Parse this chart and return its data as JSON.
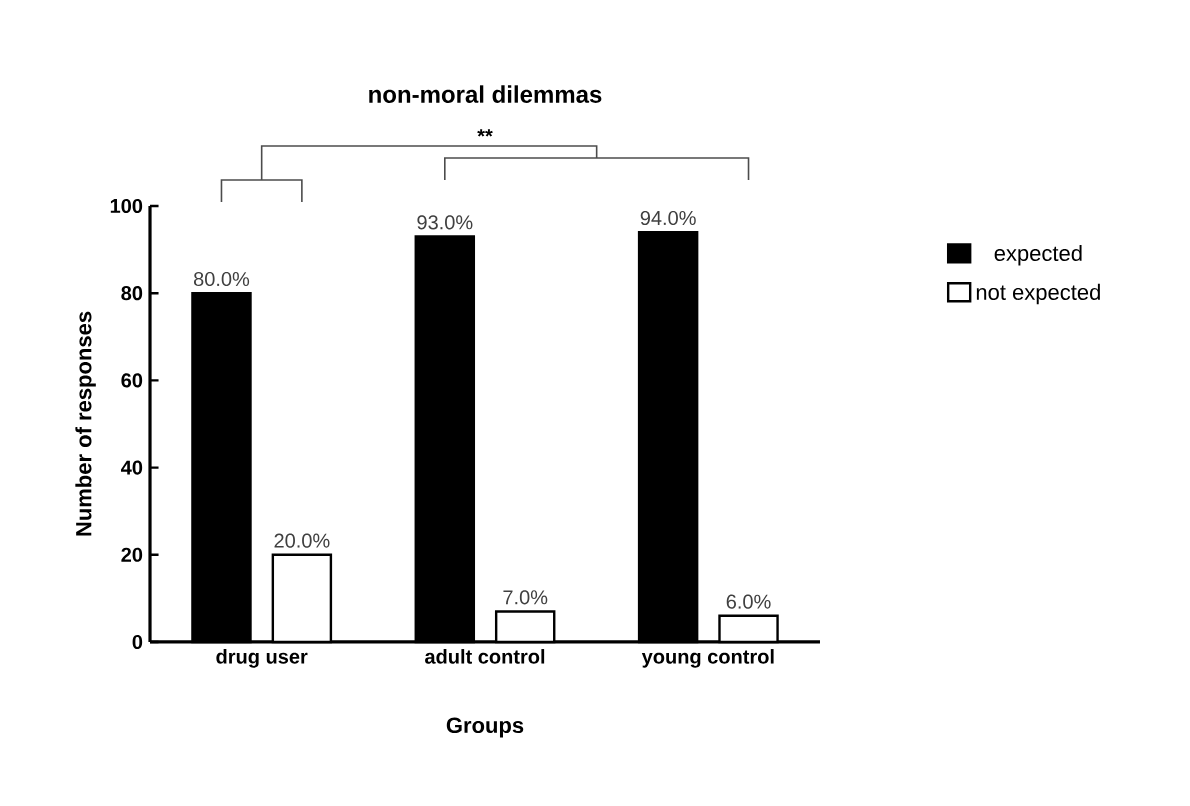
{
  "chart_data": {
    "type": "bar",
    "title": "non-moral dilemmas",
    "xlabel": "Groups",
    "ylabel": "Number of responses",
    "categories": [
      "drug user",
      "adult control",
      "young control"
    ],
    "series": [
      {
        "name": "expected",
        "color": "#000000",
        "values": [
          80,
          93,
          94
        ],
        "value_labels": [
          "80.0%",
          "93.0%",
          "94.0%"
        ]
      },
      {
        "name": "not expected",
        "color": "#ffffff",
        "values": [
          20,
          7,
          6
        ],
        "value_labels": [
          "20.0%",
          "7.0%",
          "6.0%"
        ]
      }
    ],
    "ylim": [
      0,
      100
    ],
    "yticks": [
      0,
      20,
      40,
      60,
      80,
      100
    ],
    "grid": false,
    "legend": "right",
    "annotations": [
      "**"
    ]
  }
}
